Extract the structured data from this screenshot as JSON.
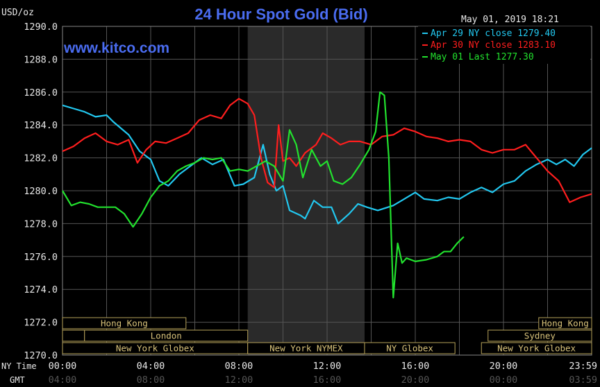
{
  "unit_label": "USD/oz",
  "timestamp": "May 01, 2019 18:21",
  "watermark": "www.kitco.com",
  "colors": {
    "background": "#000000",
    "title": "#4a6cf0",
    "axis_text": "#e8e8e8",
    "grid": "#555555",
    "shade": "#2a2a2a",
    "market_border": "#b8a35a",
    "market_text": "#d8c27a"
  },
  "row_labels": {
    "ny_time": "NY Time",
    "gmt": "GMT"
  },
  "chart_data": {
    "type": "line",
    "title": "24 Hour Spot Gold (Bid)",
    "xlabel": "",
    "ylabel": "",
    "ylim": [
      1270.0,
      1290.0
    ],
    "xlim_hours": [
      0,
      24
    ],
    "grid": true,
    "legend_position": "top-right",
    "y_ticks": [
      "1270.0",
      "1272.0",
      "1274.0",
      "1276.0",
      "1278.0",
      "1280.0",
      "1282.0",
      "1284.0",
      "1286.0",
      "1288.0",
      "1290.0"
    ],
    "x_ticks": [
      {
        "h": 0,
        "ny": "00:00",
        "gmt": "04:00"
      },
      {
        "h": 4,
        "ny": "04:00",
        "gmt": "08:00"
      },
      {
        "h": 8,
        "ny": "08:00",
        "gmt": "12:00"
      },
      {
        "h": 12,
        "ny": "12:00",
        "gmt": "16:00"
      },
      {
        "h": 16,
        "ny": "16:00",
        "gmt": "20:00"
      },
      {
        "h": 20,
        "ny": "20:00",
        "gmt": "00:00"
      },
      {
        "h": 24,
        "ny": "23:59",
        "gmt": "03:59"
      }
    ],
    "shaded_hours": [
      8.4,
      13.7
    ],
    "series": [
      {
        "name": "Apr 29 NY close 1279.40",
        "color": "#22c8f0",
        "points": [
          [
            0,
            1285.2
          ],
          [
            0.5,
            1285.0
          ],
          [
            1,
            1284.8
          ],
          [
            1.5,
            1284.5
          ],
          [
            2,
            1284.6
          ],
          [
            2.3,
            1284.2
          ],
          [
            3,
            1283.4
          ],
          [
            3.5,
            1282.4
          ],
          [
            4,
            1281.9
          ],
          [
            4.4,
            1280.6
          ],
          [
            4.8,
            1280.3
          ],
          [
            5.3,
            1281.0
          ],
          [
            5.7,
            1281.4
          ],
          [
            6.3,
            1282.0
          ],
          [
            6.8,
            1281.6
          ],
          [
            7.3,
            1281.9
          ],
          [
            7.8,
            1280.3
          ],
          [
            8.2,
            1280.4
          ],
          [
            8.7,
            1280.8
          ],
          [
            9.1,
            1282.8
          ],
          [
            9.4,
            1281.0
          ],
          [
            9.7,
            1280.0
          ],
          [
            10,
            1280.3
          ],
          [
            10.3,
            1278.8
          ],
          [
            10.8,
            1278.5
          ],
          [
            11,
            1278.3
          ],
          [
            11.4,
            1279.4
          ],
          [
            11.8,
            1279.0
          ],
          [
            12.2,
            1279.0
          ],
          [
            12.5,
            1278.0
          ],
          [
            13,
            1278.6
          ],
          [
            13.4,
            1279.2
          ],
          [
            13.8,
            1279.0
          ],
          [
            14.3,
            1278.8
          ],
          [
            15,
            1279.1
          ],
          [
            15.5,
            1279.5
          ],
          [
            16,
            1279.9
          ],
          [
            16.4,
            1279.5
          ],
          [
            17,
            1279.4
          ],
          [
            17.5,
            1279.6
          ],
          [
            18,
            1279.5
          ],
          [
            18.5,
            1279.9
          ],
          [
            19,
            1280.2
          ],
          [
            19.5,
            1279.9
          ],
          [
            20,
            1280.4
          ],
          [
            20.5,
            1280.6
          ],
          [
            21,
            1281.2
          ],
          [
            21.5,
            1281.6
          ],
          [
            22,
            1281.9
          ],
          [
            22.4,
            1281.6
          ],
          [
            22.8,
            1281.9
          ],
          [
            23.2,
            1281.5
          ],
          [
            23.6,
            1282.2
          ],
          [
            24,
            1282.6
          ]
        ]
      },
      {
        "name": "Apr 30 NY close 1283.10",
        "color": "#ff1e1e",
        "points": [
          [
            0,
            1282.4
          ],
          [
            0.5,
            1282.7
          ],
          [
            1,
            1283.2
          ],
          [
            1.5,
            1283.5
          ],
          [
            2,
            1283.0
          ],
          [
            2.5,
            1282.8
          ],
          [
            3,
            1283.1
          ],
          [
            3.4,
            1281.7
          ],
          [
            3.8,
            1282.5
          ],
          [
            4.2,
            1283.0
          ],
          [
            4.7,
            1282.9
          ],
          [
            5.2,
            1283.2
          ],
          [
            5.7,
            1283.5
          ],
          [
            6.2,
            1284.3
          ],
          [
            6.7,
            1284.6
          ],
          [
            7.2,
            1284.4
          ],
          [
            7.6,
            1285.2
          ],
          [
            8,
            1285.6
          ],
          [
            8.4,
            1285.3
          ],
          [
            8.7,
            1284.6
          ],
          [
            9,
            1282.0
          ],
          [
            9.3,
            1280.5
          ],
          [
            9.6,
            1280.2
          ],
          [
            9.8,
            1284.0
          ],
          [
            10,
            1281.8
          ],
          [
            10.3,
            1282.0
          ],
          [
            10.6,
            1281.5
          ],
          [
            11,
            1282.3
          ],
          [
            11.5,
            1282.8
          ],
          [
            11.8,
            1283.5
          ],
          [
            12.2,
            1283.2
          ],
          [
            12.6,
            1282.8
          ],
          [
            13,
            1283.0
          ],
          [
            13.5,
            1283.0
          ],
          [
            14,
            1282.8
          ],
          [
            14.5,
            1283.3
          ],
          [
            15,
            1283.4
          ],
          [
            15.5,
            1283.8
          ],
          [
            16,
            1283.6
          ],
          [
            16.5,
            1283.3
          ],
          [
            17,
            1283.2
          ],
          [
            17.5,
            1283.0
          ],
          [
            18,
            1283.1
          ],
          [
            18.5,
            1283.0
          ],
          [
            19,
            1282.5
          ],
          [
            19.5,
            1282.3
          ],
          [
            20,
            1282.5
          ],
          [
            20.5,
            1282.5
          ],
          [
            21,
            1282.8
          ],
          [
            21.5,
            1282.0
          ],
          [
            22,
            1281.2
          ],
          [
            22.5,
            1280.6
          ],
          [
            23,
            1279.3
          ],
          [
            23.5,
            1279.6
          ],
          [
            24,
            1279.8
          ]
        ]
      },
      {
        "name": "May 01 Last 1277.30",
        "color": "#22e22e",
        "points": [
          [
            0,
            1280.0
          ],
          [
            0.4,
            1279.1
          ],
          [
            0.8,
            1279.3
          ],
          [
            1.2,
            1279.2
          ],
          [
            1.6,
            1279.0
          ],
          [
            2,
            1279.0
          ],
          [
            2.4,
            1279.0
          ],
          [
            2.8,
            1278.6
          ],
          [
            3.2,
            1277.8
          ],
          [
            3.6,
            1278.6
          ],
          [
            4,
            1279.6
          ],
          [
            4.4,
            1280.3
          ],
          [
            4.8,
            1280.6
          ],
          [
            5.2,
            1281.2
          ],
          [
            5.6,
            1281.5
          ],
          [
            6,
            1281.7
          ],
          [
            6.4,
            1282.0
          ],
          [
            6.8,
            1281.9
          ],
          [
            7.2,
            1282.0
          ],
          [
            7.6,
            1281.2
          ],
          [
            8,
            1281.3
          ],
          [
            8.4,
            1281.2
          ],
          [
            8.8,
            1281.5
          ],
          [
            9.2,
            1281.8
          ],
          [
            9.6,
            1281.5
          ],
          [
            10,
            1280.6
          ],
          [
            10.3,
            1283.7
          ],
          [
            10.6,
            1282.8
          ],
          [
            10.9,
            1280.8
          ],
          [
            11.3,
            1282.5
          ],
          [
            11.7,
            1281.5
          ],
          [
            12,
            1281.8
          ],
          [
            12.3,
            1280.6
          ],
          [
            12.7,
            1280.4
          ],
          [
            13.1,
            1280.8
          ],
          [
            13.5,
            1281.6
          ],
          [
            13.9,
            1282.5
          ],
          [
            14.2,
            1283.6
          ],
          [
            14.4,
            1286.0
          ],
          [
            14.6,
            1285.8
          ],
          [
            14.8,
            1282.0
          ],
          [
            15,
            1273.5
          ],
          [
            15.2,
            1276.8
          ],
          [
            15.4,
            1275.6
          ],
          [
            15.6,
            1275.9
          ],
          [
            16,
            1275.7
          ],
          [
            16.5,
            1275.8
          ],
          [
            17,
            1276.0
          ],
          [
            17.3,
            1276.3
          ],
          [
            17.6,
            1276.3
          ],
          [
            17.9,
            1276.8
          ],
          [
            18.2,
            1277.2
          ]
        ]
      }
    ],
    "market_rows": [
      [
        {
          "label": "Hong Kong",
          "start": 0,
          "end": 5.6
        },
        {
          "label": "Hong Kong",
          "start": 21.6,
          "end": 24
        }
      ],
      [
        {
          "label": "",
          "start": 0,
          "end": 1.0
        },
        {
          "label": "London",
          "start": 1.0,
          "end": 8.4
        },
        {
          "label": "Sydney",
          "start": 19.3,
          "end": 24
        }
      ],
      [
        {
          "label": "New York Globex",
          "start": 0,
          "end": 8.4
        },
        {
          "label": "New York NYMEX",
          "start": 8.4,
          "end": 13.7
        },
        {
          "label": "NY Globex",
          "start": 13.7,
          "end": 17.8
        },
        {
          "label": "New York Globex",
          "start": 19.0,
          "end": 24
        }
      ]
    ]
  }
}
